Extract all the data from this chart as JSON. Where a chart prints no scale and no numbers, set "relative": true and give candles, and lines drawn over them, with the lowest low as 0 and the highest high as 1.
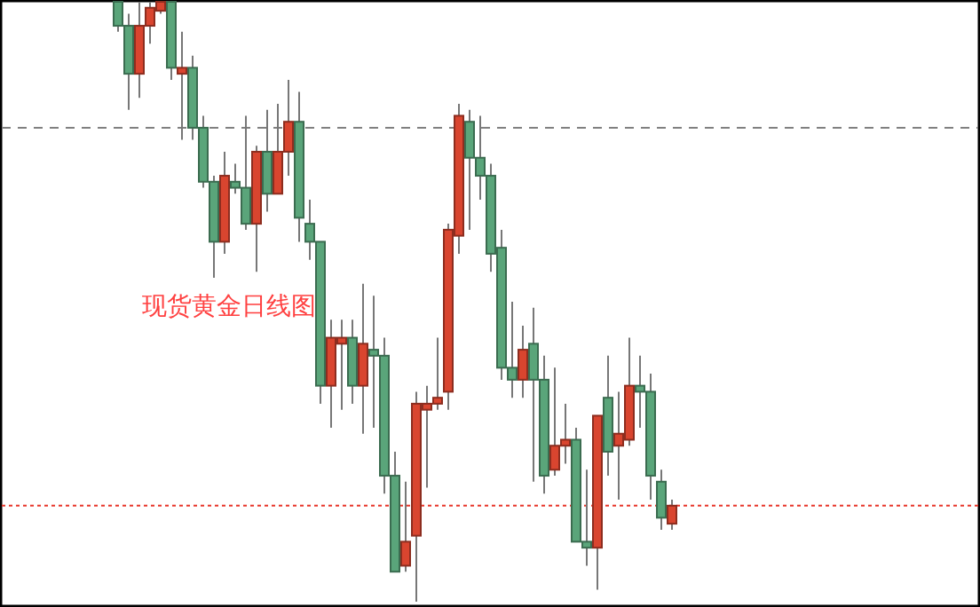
{
  "chart_data": {
    "type": "candlestick",
    "relative": true,
    "categories": [
      null,
      null,
      null,
      null,
      null,
      null,
      null,
      null,
      null,
      null,
      null,
      null,
      null,
      null,
      null,
      null,
      null,
      null,
      null,
      null,
      null,
      null,
      null,
      null,
      null,
      null,
      null,
      null,
      null,
      null,
      null,
      null,
      null,
      null,
      null,
      null,
      null,
      null,
      null,
      null,
      null,
      null,
      null,
      null,
      null,
      null,
      null,
      null,
      null,
      null,
      null,
      null,
      null
    ],
    "ohlc": [
      [
        1,
        1,
        0.95,
        0.96
      ],
      [
        0.96,
        0.98,
        0.82,
        0.88
      ],
      [
        0.88,
        1,
        0.84,
        0.96
      ],
      [
        0.96,
        1,
        0.93,
        0.99
      ],
      [
        0.985,
        1,
        0.98,
        1
      ],
      [
        1,
        1,
        0.87,
        0.89
      ],
      [
        0.88,
        0.95,
        0.77,
        0.89
      ],
      [
        0.89,
        0.91,
        0.77,
        0.79
      ],
      [
        0.79,
        0.81,
        0.69,
        0.7
      ],
      [
        0.7,
        0.71,
        0.54,
        0.6
      ],
      [
        0.6,
        0.75,
        0.58,
        0.71
      ],
      [
        0.7,
        0.73,
        0.68,
        0.69
      ],
      [
        0.69,
        0.81,
        0.62,
        0.63
      ],
      [
        0.63,
        0.76,
        0.55,
        0.75
      ],
      [
        0.75,
        0.82,
        0.65,
        0.68
      ],
      [
        0.68,
        0.83,
        0.68,
        0.75
      ],
      [
        0.75,
        0.87,
        0.71,
        0.8
      ],
      [
        0.8,
        0.85,
        0.6,
        0.64
      ],
      [
        0.63,
        0.67,
        0.57,
        0.6
      ],
      [
        0.6,
        0.6,
        0.33,
        0.36
      ],
      [
        0.36,
        0.47,
        0.29,
        0.44
      ],
      [
        0.43,
        0.47,
        0.32,
        0.44
      ],
      [
        0.44,
        0.47,
        0.33,
        0.36
      ],
      [
        0.36,
        0.53,
        0.28,
        0.43
      ],
      [
        0.42,
        0.51,
        0.29,
        0.41
      ],
      [
        0.41,
        0.44,
        0.18,
        0.21
      ],
      [
        0.21,
        0.25,
        0.05,
        0.05
      ],
      [
        0.06,
        0.2,
        0.05,
        0.1
      ],
      [
        0.11,
        0.35,
        0,
        0.33
      ],
      [
        0.32,
        0.36,
        0.19,
        0.33
      ],
      [
        0.33,
        0.44,
        0.32,
        0.34
      ],
      [
        0.35,
        0.63,
        0.32,
        0.62
      ],
      [
        0.61,
        0.83,
        0.58,
        0.81
      ],
      [
        0.8,
        0.82,
        0.62,
        0.74
      ],
      [
        0.74,
        0.81,
        0.67,
        0.71
      ],
      [
        0.71,
        0.73,
        0.55,
        0.58
      ],
      [
        0.59,
        0.62,
        0.37,
        0.39
      ],
      [
        0.39,
        0.5,
        0.34,
        0.37
      ],
      [
        0.37,
        0.46,
        0.34,
        0.42
      ],
      [
        0.43,
        0.49,
        0.2,
        0.37
      ],
      [
        0.37,
        0.41,
        0.18,
        0.21
      ],
      [
        0.22,
        0.39,
        0.21,
        0.26
      ],
      [
        0.26,
        0.33,
        0.23,
        0.27
      ],
      [
        0.27,
        0.29,
        0.1,
        0.1
      ],
      [
        0.1,
        0.22,
        0.06,
        0.09
      ],
      [
        0.09,
        0.31,
        0.02,
        0.31
      ],
      [
        0.34,
        0.41,
        0.21,
        0.25
      ],
      [
        0.26,
        0.35,
        0.17,
        0.28
      ],
      [
        0.27,
        0.44,
        0.26,
        0.36
      ],
      [
        0.36,
        0.41,
        0.29,
        0.35
      ],
      [
        0.35,
        0.38,
        0.17,
        0.21
      ],
      [
        0.2,
        0.22,
        0.12,
        0.14
      ],
      [
        0.13,
        0.17,
        0.12,
        0.16
      ]
    ],
    "colors": [
      "#5aa57a",
      "#5aa57a",
      "#d9452f",
      "#d9452f",
      "#d9452f",
      "#5aa57a",
      "#d9452f",
      "#5aa57a",
      "#5aa57a",
      "#5aa57a",
      "#d9452f",
      "#5aa57a",
      "#5aa57a",
      "#d9452f",
      "#5aa57a",
      "#d9452f",
      "#d9452f",
      "#5aa57a",
      "#5aa57a",
      "#5aa57a",
      "#d9452f",
      "#d9452f",
      "#5aa57a",
      "#d9452f",
      "#5aa57a",
      "#5aa57a",
      "#5aa57a",
      "#d9452f",
      "#d9452f",
      "#d9452f",
      "#d9452f",
      "#d9452f",
      "#d9452f",
      "#5aa57a",
      "#5aa57a",
      "#5aa57a",
      "#5aa57a",
      "#5aa57a",
      "#d9452f",
      "#5aa57a",
      "#5aa57a",
      "#d9452f",
      "#d9452f",
      "#5aa57a",
      "#5aa57a",
      "#d9452f",
      "#5aa57a",
      "#d9452f",
      "#d9452f",
      "#5aa57a",
      "#5aa57a",
      "#5aa57a",
      "#d9452f"
    ],
    "ref_lines": [
      {
        "axis": "y",
        "value": 0.79,
        "color": "#808080",
        "line_style": "dashed"
      },
      {
        "axis": "y",
        "value": 0.16,
        "color": "#e8382c",
        "line_style": "dotted"
      }
    ],
    "annotations": [
      "现货黄金日线图"
    ]
  }
}
